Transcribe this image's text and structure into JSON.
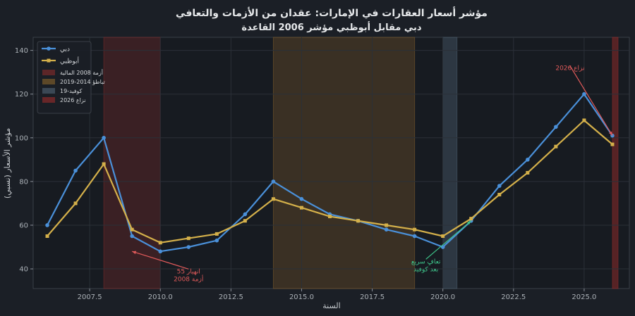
{
  "chart_data": {
    "type": "line",
    "title": "مؤشر أسعار العقارات في الإمارات: عقدان من الأزمات والتعافي",
    "subtitle": "دبي مقابل أبوظبي  مؤشر 2006  القاعدة",
    "xlabel": "السنة",
    "ylabel": "مؤشر الأسعار (نسبي)",
    "xlim": [
      2005.5,
      2026.6
    ],
    "ylim": [
      31,
      146
    ],
    "xticks": [
      2007.5,
      2010.0,
      2012.5,
      2015.0,
      2017.5,
      2020.0,
      2022.5,
      2025.0
    ],
    "xtick_labels": [
      "2007.5",
      "2010.0",
      "2012.5",
      "2015.0",
      "2017.5",
      "2020.0",
      "2022.5",
      "2025.0"
    ],
    "yticks": [
      40,
      60,
      80,
      100,
      120,
      140
    ],
    "ytick_labels": [
      "40",
      "60",
      "80",
      "100",
      "120",
      "140"
    ],
    "grid": true,
    "legend_position": "top-left",
    "series": [
      {
        "name": "دبي",
        "color": "#4a90d9",
        "marker": "circle",
        "x": [
          2006,
          2007,
          2008,
          2009,
          2010,
          2011,
          2012,
          2013,
          2014,
          2015,
          2016,
          2017,
          2018,
          2019,
          2020,
          2021,
          2022,
          2023,
          2024,
          2025,
          2026
        ],
        "y": [
          60,
          85,
          100,
          55,
          48,
          50,
          53,
          65,
          80,
          72,
          65,
          62,
          58,
          55,
          50,
          62,
          78,
          90,
          105,
          120,
          101
        ]
      },
      {
        "name": "أبوظبي",
        "color": "#d4b04a",
        "marker": "square",
        "x": [
          2006,
          2007,
          2008,
          2009,
          2010,
          2011,
          2012,
          2013,
          2014,
          2015,
          2016,
          2017,
          2018,
          2019,
          2020,
          2021,
          2022,
          2023,
          2024,
          2025,
          2026
        ],
        "y": [
          55,
          70,
          88,
          58,
          52,
          54,
          56,
          62,
          72,
          68,
          64,
          62,
          60,
          58,
          55,
          63,
          74,
          84,
          96,
          108,
          97
        ]
      }
    ],
    "shaded_regions": [
      {
        "label": "أزمة 2008 المالية",
        "x_start": 2008.0,
        "x_end": 2010.0,
        "color": "#7a2a2a",
        "opacity": 0.35
      },
      {
        "label": "تباطؤ 2014-2019",
        "x_start": 2014.0,
        "x_end": 2019.0,
        "color": "#7a5a2a",
        "opacity": 0.35
      },
      {
        "label": "كوفيد-19",
        "x_start": 2020.0,
        "x_end": 2020.5,
        "color": "#4a5a6a",
        "opacity": 0.45
      },
      {
        "label": "نزاع 2026",
        "x_start": 2026.0,
        "x_end": 2026.2,
        "color": "#8a2a2a",
        "opacity": 0.55
      }
    ],
    "annotations": [
      {
        "text_lines": [
          "انهيار 55",
          "أزمة 2008"
        ],
        "x": 2009.0,
        "y": 48,
        "text_x": 2011.0,
        "text_y": 38,
        "color": "#e05a5a"
      },
      {
        "text_lines": [
          "تعافٍ سريع",
          "بعد كوفيد"
        ],
        "x": 2021.0,
        "y": 62,
        "text_x": 2019.4,
        "text_y": 42.5,
        "color": "#3ec48a"
      },
      {
        "text_lines": [
          "نزاع 2026"
        ],
        "x": 2026.0,
        "y": 101,
        "text_x": 2024.5,
        "text_y": 131,
        "color": "#e05a5a"
      }
    ]
  }
}
